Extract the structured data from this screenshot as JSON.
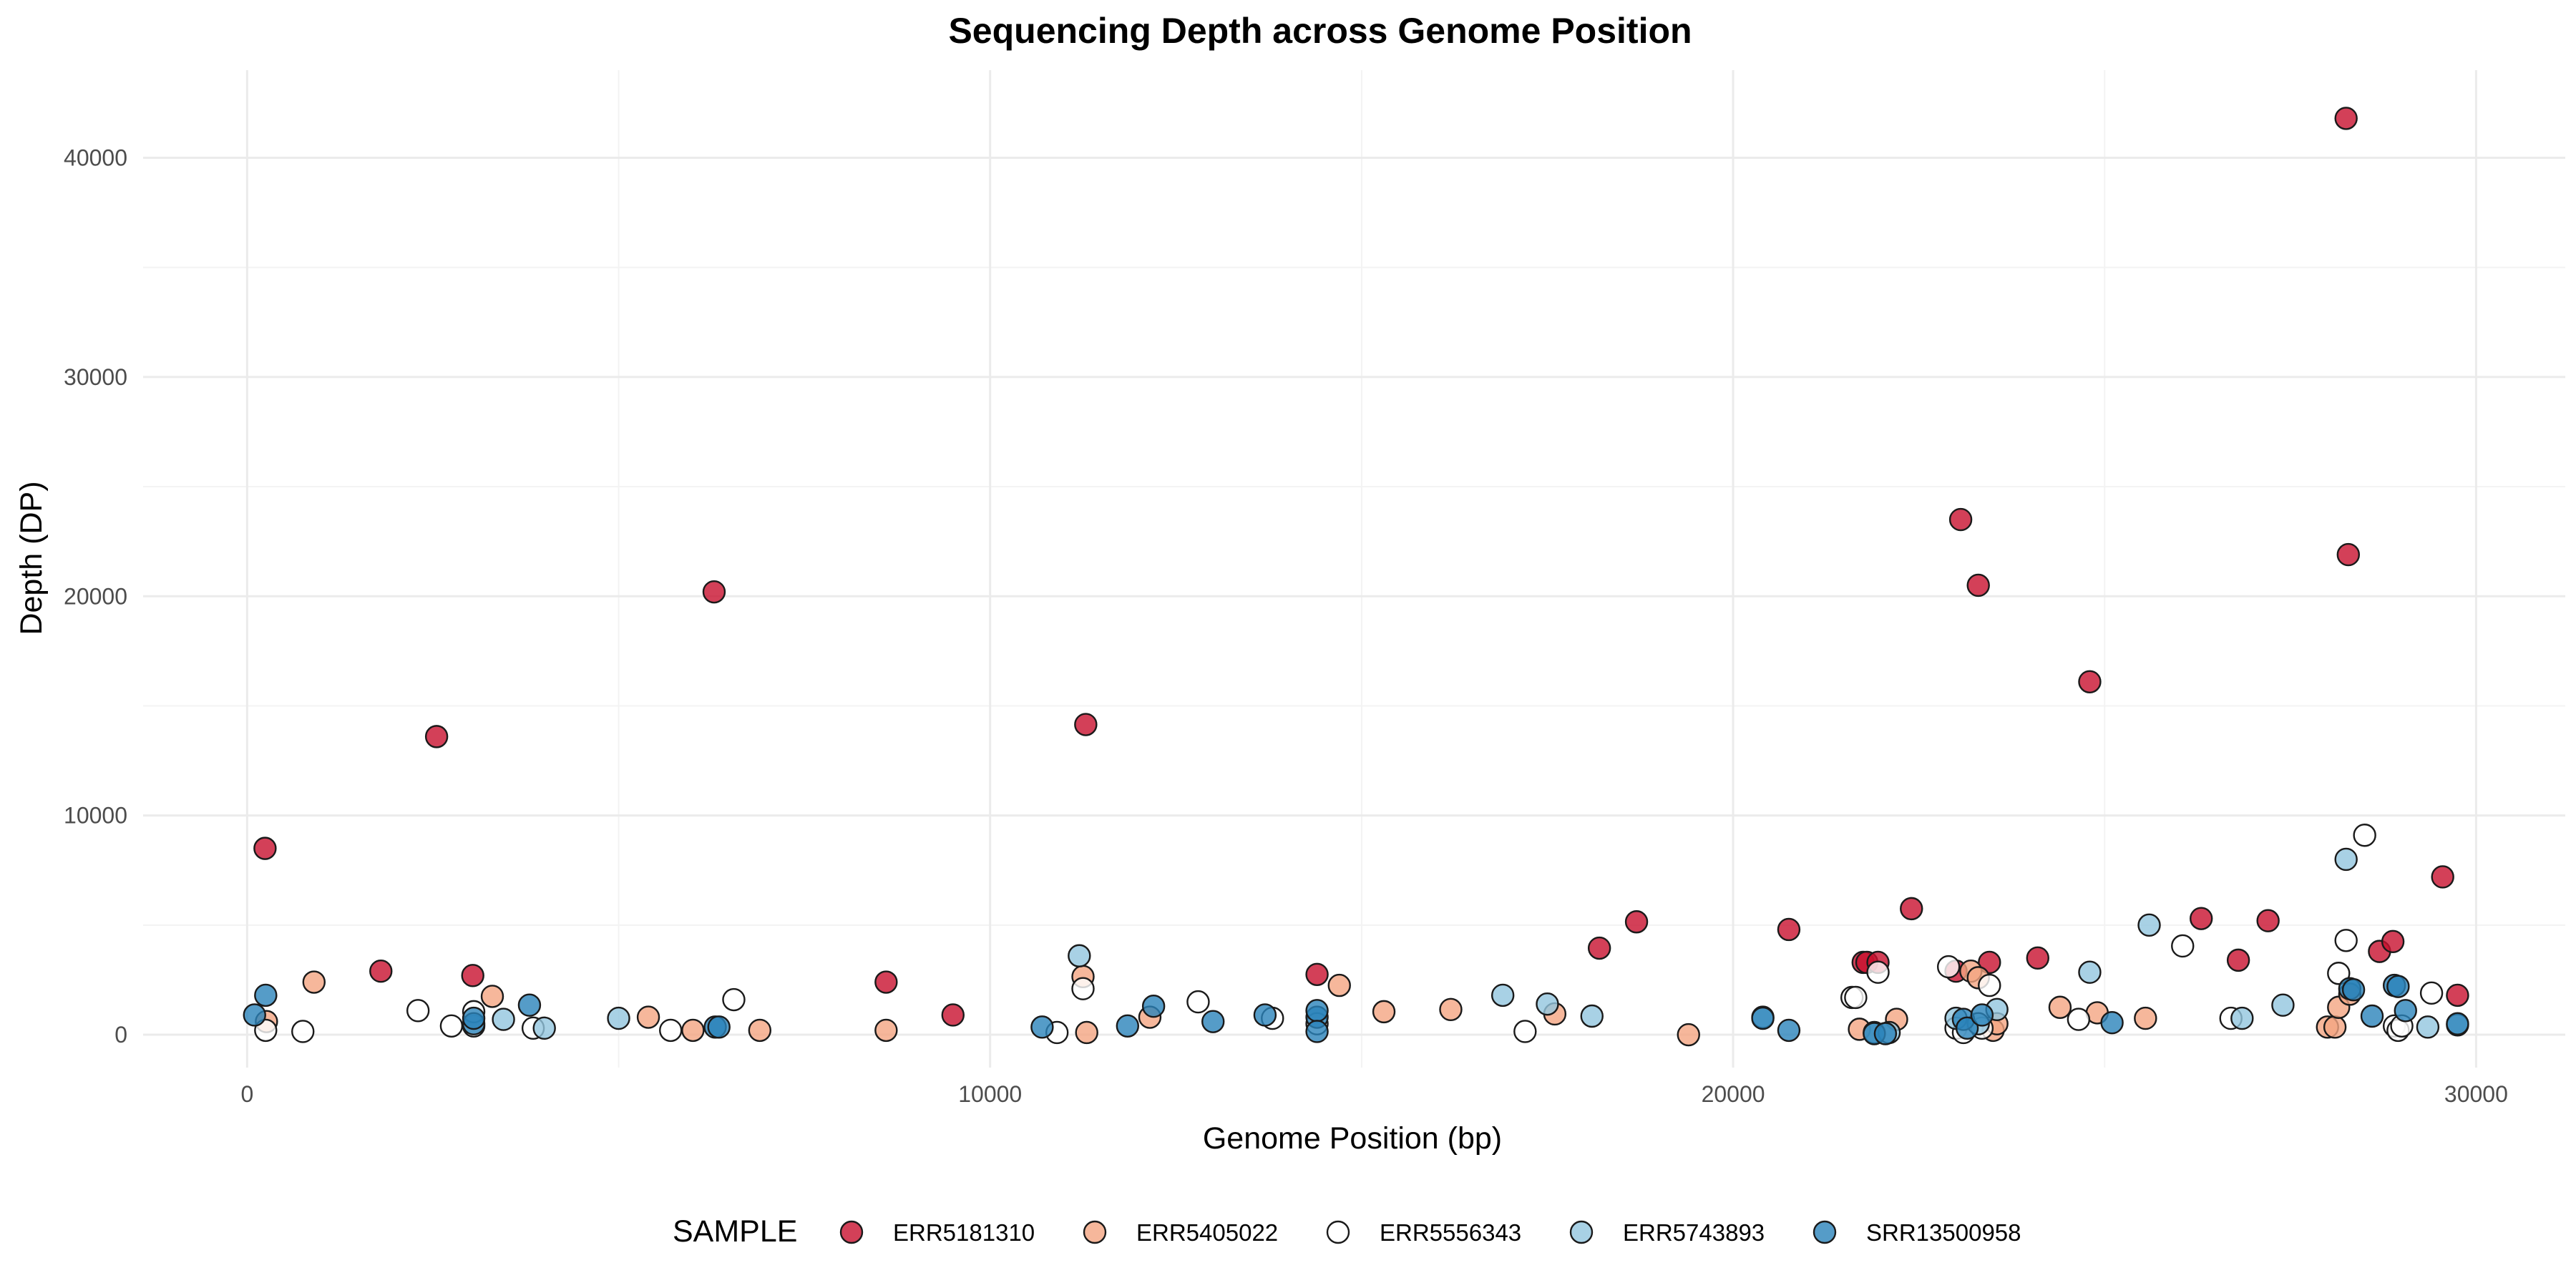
{
  "chart_data": {
    "type": "scatter",
    "title": "Sequencing Depth across Genome Position",
    "xlabel": "Genome Position (bp)",
    "ylabel": "Depth (DP)",
    "xlim": [
      -1400,
      31200
    ],
    "ylim": [
      -1500,
      44000
    ],
    "x_ticks": [
      0,
      10000,
      20000,
      30000
    ],
    "x_tick_labels": [
      "0",
      "10000",
      "20000",
      "30000"
    ],
    "y_ticks": [
      0,
      10000,
      20000,
      30000,
      40000
    ],
    "y_tick_labels": [
      "0",
      "10000",
      "20000",
      "30000",
      "40000"
    ],
    "grid": true,
    "legend": {
      "title": "SAMPLE",
      "position": "bottom"
    },
    "series": [
      {
        "name": "ERR5181310",
        "color": "#c8102e",
        "points": [
          [
            241,
            8500
          ],
          [
            1800,
            2900
          ],
          [
            2550,
            13600
          ],
          [
            3037,
            2700
          ],
          [
            6285,
            20200
          ],
          [
            8600,
            2400
          ],
          [
            9500,
            900
          ],
          [
            11287,
            14150
          ],
          [
            14400,
            2750
          ],
          [
            18200,
            3950
          ],
          [
            18700,
            5150
          ],
          [
            20750,
            4800
          ],
          [
            21750,
            3300
          ],
          [
            21800,
            3300
          ],
          [
            21950,
            3300
          ],
          [
            22400,
            5750
          ],
          [
            23000,
            2900
          ],
          [
            23063,
            23500
          ],
          [
            23300,
            20500
          ],
          [
            23450,
            3300
          ],
          [
            24100,
            3500
          ],
          [
            24800,
            16100
          ],
          [
            26300,
            5300
          ],
          [
            26800,
            3400
          ],
          [
            27200,
            5200
          ],
          [
            28250,
            41800
          ],
          [
            28280,
            21900
          ],
          [
            28700,
            3800
          ],
          [
            28880,
            4250
          ],
          [
            29550,
            7200
          ],
          [
            29750,
            1800
          ]
        ]
      },
      {
        "name": "ERR5405022",
        "color": "#f4a582",
        "points": [
          [
            260,
            600
          ],
          [
            900,
            2400
          ],
          [
            3300,
            1750
          ],
          [
            5400,
            800
          ],
          [
            6000,
            200
          ],
          [
            6900,
            200
          ],
          [
            8600,
            200
          ],
          [
            11250,
            2650
          ],
          [
            11300,
            100
          ],
          [
            12150,
            800
          ],
          [
            14700,
            2250
          ],
          [
            15300,
            1050
          ],
          [
            16200,
            1150
          ],
          [
            17600,
            950
          ],
          [
            19400,
            0
          ],
          [
            21700,
            250
          ],
          [
            22200,
            700
          ],
          [
            23200,
            2900
          ],
          [
            23300,
            2600
          ],
          [
            23500,
            200
          ],
          [
            23550,
            500
          ],
          [
            24400,
            1250
          ],
          [
            24900,
            1000
          ],
          [
            25550,
            750
          ],
          [
            28000,
            350
          ],
          [
            28100,
            350
          ],
          [
            28150,
            1250
          ],
          [
            28300,
            1850
          ]
        ]
      },
      {
        "name": "ERR5556343",
        "color": "#ffffff",
        "points": [
          [
            250,
            200
          ],
          [
            750,
            150
          ],
          [
            2300,
            1100
          ],
          [
            2750,
            400
          ],
          [
            3050,
            400
          ],
          [
            3050,
            1050
          ],
          [
            3850,
            300
          ],
          [
            5700,
            200
          ],
          [
            6550,
            1600
          ],
          [
            10900,
            100
          ],
          [
            11250,
            2100
          ],
          [
            12800,
            1500
          ],
          [
            13800,
            750
          ],
          [
            14400,
            500
          ],
          [
            17200,
            150
          ],
          [
            21600,
            1700
          ],
          [
            21650,
            1700
          ],
          [
            21950,
            2850
          ],
          [
            22900,
            3100
          ],
          [
            23000,
            300
          ],
          [
            23100,
            100
          ],
          [
            23350,
            300
          ],
          [
            23450,
            2250
          ],
          [
            24650,
            700
          ],
          [
            26050,
            4050
          ],
          [
            26700,
            750
          ],
          [
            28150,
            2800
          ],
          [
            28250,
            4300
          ],
          [
            28500,
            9100
          ],
          [
            28900,
            400
          ],
          [
            28950,
            200
          ],
          [
            29000,
            400
          ],
          [
            29400,
            1900
          ]
        ]
      },
      {
        "name": "ERR5743893",
        "color": "#92c5de",
        "points": [
          [
            5000,
            750
          ],
          [
            3450,
            700
          ],
          [
            4000,
            300
          ],
          [
            11200,
            3600
          ],
          [
            16900,
            1800
          ],
          [
            17500,
            1400
          ],
          [
            18100,
            850
          ],
          [
            20400,
            800
          ],
          [
            21900,
            100
          ],
          [
            22100,
            100
          ],
          [
            23000,
            750
          ],
          [
            23300,
            500
          ],
          [
            23550,
            1150
          ],
          [
            24800,
            2850
          ],
          [
            25600,
            5000
          ],
          [
            26850,
            750
          ],
          [
            27400,
            1350
          ],
          [
            28250,
            8000
          ],
          [
            29350,
            350
          ],
          [
            29750,
            450
          ]
        ]
      },
      {
        "name": "SRR13500958",
        "color": "#2b83ba",
        "points": [
          [
            100,
            900
          ],
          [
            250,
            1800
          ],
          [
            3050,
            500
          ],
          [
            3050,
            750
          ],
          [
            3800,
            1350
          ],
          [
            6300,
            350
          ],
          [
            6350,
            350
          ],
          [
            10700,
            350
          ],
          [
            11850,
            400
          ],
          [
            12200,
            1300
          ],
          [
            13000,
            600
          ],
          [
            13700,
            900
          ],
          [
            14400,
            800
          ],
          [
            14400,
            1100
          ],
          [
            14400,
            150
          ],
          [
            20400,
            750
          ],
          [
            20750,
            200
          ],
          [
            21900,
            50
          ],
          [
            22050,
            50
          ],
          [
            23100,
            700
          ],
          [
            23150,
            300
          ],
          [
            23350,
            900
          ],
          [
            25100,
            550
          ],
          [
            28300,
            2100
          ],
          [
            28350,
            2050
          ],
          [
            28600,
            850
          ],
          [
            28900,
            2250
          ],
          [
            28950,
            2200
          ],
          [
            29050,
            1100
          ],
          [
            29750,
            500
          ]
        ]
      }
    ]
  }
}
